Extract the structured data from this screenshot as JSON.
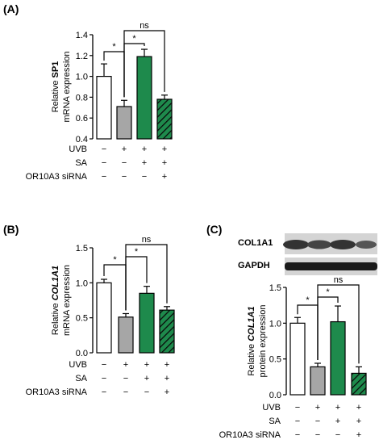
{
  "panels": {
    "A": {
      "label": "(A)"
    },
    "B": {
      "label": "(B)"
    },
    "C": {
      "label": "(C)"
    }
  },
  "blot": {
    "bands": [
      "COL1A1",
      "GAPDH"
    ]
  },
  "row_labels": [
    "UVB",
    "SA",
    "OR10A3 siRNA"
  ],
  "chart_data": [
    {
      "type": "bar",
      "panel": "A",
      "ylabel_prefix": "Relative",
      "ylabel_gene": "SP1",
      "ylabel_line2": "mRNA expression",
      "ylim": [
        0.4,
        1.4
      ],
      "yticks": [
        "0.4",
        "0.6",
        "0.8",
        "1.0",
        "1.2",
        "1.4"
      ],
      "values": [
        1.0,
        0.71,
        1.19,
        0.78
      ],
      "errors": [
        0.12,
        0.06,
        0.07,
        0.04
      ],
      "bar_styles": [
        "white",
        "gray",
        "green",
        "hatched"
      ],
      "conditions": {
        "UVB": [
          "−",
          "+",
          "+",
          "+"
        ],
        "SA": [
          "−",
          "−",
          "+",
          "+"
        ],
        "OR10A3 siRNA": [
          "−",
          "−",
          "−",
          "+"
        ]
      },
      "significance": [
        {
          "from": 0,
          "to": 1,
          "label": "*"
        },
        {
          "from": 1,
          "to": 2,
          "label": "*"
        },
        {
          "from": 1,
          "to": 3,
          "label": "ns"
        }
      ]
    },
    {
      "type": "bar",
      "panel": "B",
      "ylabel_prefix": "Relative",
      "ylabel_gene": "COL1A1",
      "ylabel_line2": "mRNA expression",
      "ylim": [
        0.0,
        1.5
      ],
      "yticks": [
        "0.0",
        "0.5",
        "1.0",
        "1.5"
      ],
      "values": [
        1.0,
        0.51,
        0.85,
        0.61
      ],
      "errors": [
        0.05,
        0.05,
        0.1,
        0.05
      ],
      "bar_styles": [
        "white",
        "gray",
        "green",
        "hatched"
      ],
      "conditions": {
        "UVB": [
          "−",
          "+",
          "+",
          "+"
        ],
        "SA": [
          "−",
          "−",
          "+",
          "+"
        ],
        "OR10A3 siRNA": [
          "−",
          "−",
          "−",
          "+"
        ]
      },
      "significance": [
        {
          "from": 0,
          "to": 1,
          "label": "*"
        },
        {
          "from": 1,
          "to": 2,
          "label": "*"
        },
        {
          "from": 1,
          "to": 3,
          "label": "ns"
        }
      ]
    },
    {
      "type": "bar",
      "panel": "C",
      "ylabel_prefix": "Relative",
      "ylabel_gene": "COL1A1",
      "ylabel_line2": "protein expression",
      "ylim": [
        0.0,
        1.5
      ],
      "yticks": [
        "0.0",
        "0.5",
        "1.0",
        "1.5"
      ],
      "values": [
        1.0,
        0.39,
        1.02,
        0.3
      ],
      "errors": [
        0.08,
        0.05,
        0.22,
        0.09
      ],
      "bar_styles": [
        "white",
        "gray",
        "green",
        "hatched"
      ],
      "conditions": {
        "UVB": [
          "−",
          "+",
          "+",
          "+"
        ],
        "SA": [
          "−",
          "−",
          "+",
          "+"
        ],
        "OR10A3 siRNA": [
          "−",
          "−",
          "−",
          "+"
        ]
      },
      "significance": [
        {
          "from": 0,
          "to": 1,
          "label": "*"
        },
        {
          "from": 1,
          "to": 2,
          "label": "*"
        },
        {
          "from": 1,
          "to": 3,
          "label": "ns"
        }
      ]
    }
  ],
  "colors": {
    "gray": "#a6a6a6",
    "green": "#1e8a4c",
    "hatch_bg": "#1e8a4c",
    "hatch_line": "#0a0a0a",
    "axis": "#000000"
  }
}
